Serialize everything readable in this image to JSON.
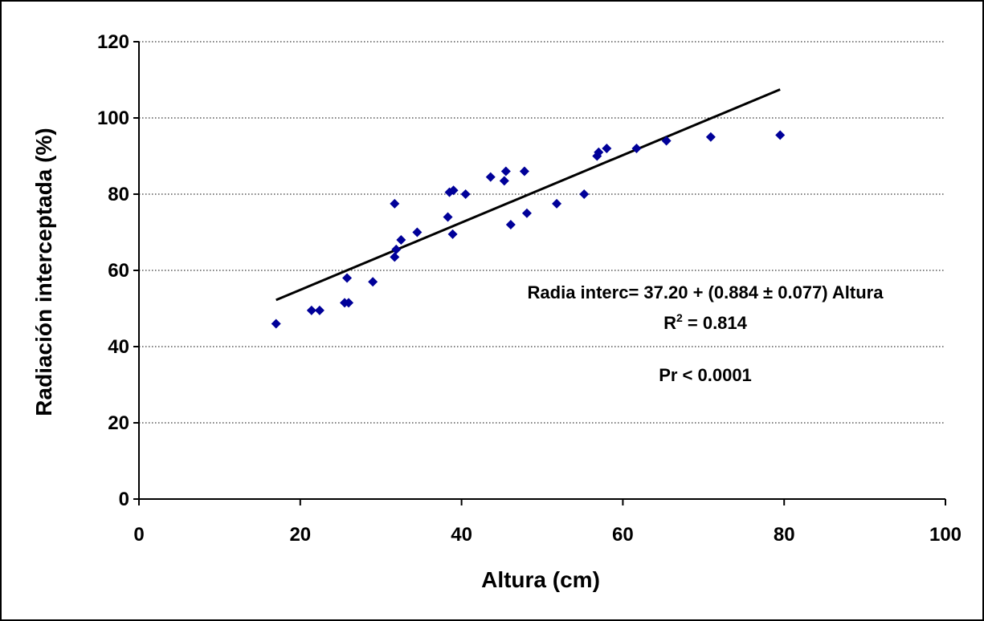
{
  "chart_data": {
    "type": "scatter",
    "xlabel": "Altura (cm)",
    "ylabel": "Radiación interceptada (%)",
    "xlim": [
      0,
      100
    ],
    "ylim": [
      0,
      120
    ],
    "x_ticks": [
      "0",
      "20",
      "40",
      "60",
      "80",
      "100"
    ],
    "y_ticks": [
      "0",
      "20",
      "40",
      "60",
      "80",
      "100",
      "120"
    ],
    "grid": "horizontal-dotted",
    "marker_color": "#000099",
    "line_color": "#000000",
    "points": [
      [
        17,
        46
      ],
      [
        21.4,
        49.5
      ],
      [
        22.4,
        49.5
      ],
      [
        25.5,
        51.5
      ],
      [
        26.0,
        51.5
      ],
      [
        25.8,
        58
      ],
      [
        29.0,
        57
      ],
      [
        31.7,
        63.5
      ],
      [
        31.9,
        65.5
      ],
      [
        31.7,
        77.5
      ],
      [
        32.5,
        68
      ],
      [
        34.5,
        70
      ],
      [
        38.3,
        74
      ],
      [
        38.5,
        80.5
      ],
      [
        39.0,
        81
      ],
      [
        38.9,
        69.5
      ],
      [
        40.5,
        80
      ],
      [
        43.6,
        84.5
      ],
      [
        45.3,
        83.5
      ],
      [
        45.5,
        86
      ],
      [
        46.1,
        72
      ],
      [
        47.8,
        86
      ],
      [
        48.1,
        75
      ],
      [
        51.8,
        77.5
      ],
      [
        55.2,
        80
      ],
      [
        56.8,
        90
      ],
      [
        57.0,
        91
      ],
      [
        58.0,
        92
      ],
      [
        61.7,
        92
      ],
      [
        65.4,
        94
      ],
      [
        70.9,
        95
      ],
      [
        79.5,
        95.5
      ]
    ],
    "trendline": {
      "intercept": 37.2,
      "slope": 0.884,
      "x_range": [
        17,
        79.5
      ]
    },
    "annotations": {
      "equation": "Radia interc= 37.20 + (0.884 ± 0.077) Altura",
      "r2_label": "R",
      "r2_sup": "2",
      "r2_value": " = 0.814",
      "pvalue": "Pr < 0.0001"
    }
  }
}
